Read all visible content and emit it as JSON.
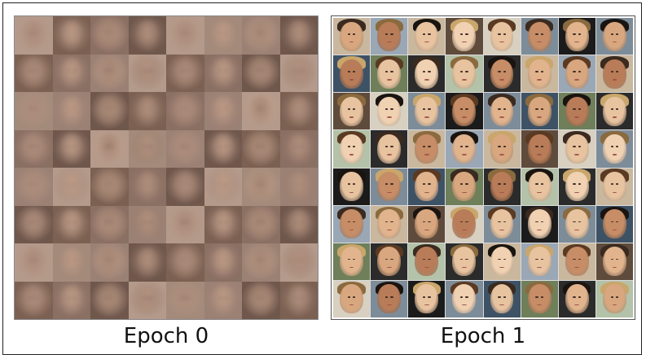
{
  "panels": [
    {
      "caption": "Epoch 0",
      "style": "noisy",
      "rows": 8,
      "cols": 8
    },
    {
      "caption": "Epoch 1",
      "style": "faces",
      "rows": 8,
      "cols": 8
    }
  ],
  "colors": {
    "noisy_bg": [
      "#8a6f63",
      "#9b8174",
      "#6f574c",
      "#b49a8b",
      "#7c6153",
      "#a38a7a"
    ],
    "noisy_face": [
      "#b69481",
      "#a8897a",
      "#c29f89",
      "#9e806f"
    ],
    "skin": [
      "#e8c3a0",
      "#d9a77f",
      "#c78d66",
      "#f0d1b2",
      "#b97c58",
      "#e1b48e"
    ],
    "backgrounds": [
      "#2b2b2b",
      "#7d8c99",
      "#c9b79e",
      "#3e5266",
      "#5f4b3b",
      "#b3c2a8",
      "#1b1b1b",
      "#9aa7b5",
      "#6e7f5a",
      "#d8d0c0"
    ]
  }
}
